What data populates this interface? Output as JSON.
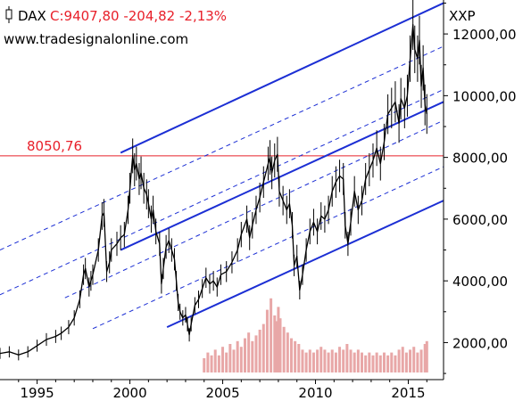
{
  "header": {
    "symbol": "DAX",
    "quote": "C:9407,80 -204,82 -2,13%",
    "website": "www.tradesignalonline.com",
    "axis_unit": "XXP"
  },
  "chart_data": {
    "type": "line",
    "series_name": "DAX",
    "y_ticks": [
      2000,
      4000,
      6000,
      8000,
      10000,
      12000
    ],
    "y_tick_labels": [
      "2000,00",
      "4000,00",
      "6000,00",
      "8000,00",
      "10000,00",
      "12000,00"
    ],
    "x_ticks": [
      1995,
      2000,
      2005,
      2010,
      2015
    ],
    "x_tick_labels": [
      "1995",
      "2000",
      "2005",
      "2010",
      "2015"
    ],
    "x_range": [
      1993.0,
      2016.9
    ],
    "y_range": [
      800,
      13100
    ],
    "horizontal_level": {
      "value": 8050.76,
      "label": "8050,76",
      "color": "#e8202a"
    },
    "channel_lines": [
      {
        "from": [
          1999.5,
          8150
        ],
        "to": [
          2016.9,
          13000
        ],
        "style": "solid"
      },
      {
        "from": [
          1999.5,
          5000
        ],
        "to": [
          2016.9,
          9800
        ],
        "style": "solid"
      },
      {
        "from": [
          2002.0,
          2500
        ],
        "to": [
          2016.9,
          6600
        ],
        "style": "solid"
      },
      {
        "from": [
          1993.0,
          5000
        ],
        "to": [
          2016.9,
          11600
        ],
        "style": "dashed"
      },
      {
        "from": [
          1993.0,
          3550
        ],
        "to": [
          2016.9,
          10200
        ],
        "style": "dashed"
      },
      {
        "from": [
          1996.5,
          3450
        ],
        "to": [
          2016.9,
          9200
        ],
        "style": "dashed"
      },
      {
        "from": [
          1998.0,
          2450
        ],
        "to": [
          2016.9,
          7700
        ],
        "style": "dashed"
      }
    ],
    "price": [
      [
        1993.0,
        1650
      ],
      [
        1993.5,
        1700
      ],
      [
        1994.0,
        1600
      ],
      [
        1994.5,
        1700
      ],
      [
        1995.0,
        1900
      ],
      [
        1995.5,
        2100
      ],
      [
        1996.0,
        2200
      ],
      [
        1996.3,
        2300
      ],
      [
        1996.7,
        2500
      ],
      [
        1997.0,
        2800
      ],
      [
        1997.3,
        3400
      ],
      [
        1997.5,
        4200
      ],
      [
        1997.6,
        4400
      ],
      [
        1997.8,
        3800
      ],
      [
        1997.9,
        4000
      ],
      [
        1998.0,
        4200
      ],
      [
        1998.3,
        5000
      ],
      [
        1998.5,
        6100
      ],
      [
        1998.6,
        6200
      ],
      [
        1998.75,
        4300
      ],
      [
        1998.9,
        4600
      ],
      [
        1999.0,
        5000
      ],
      [
        1999.3,
        5200
      ],
      [
        1999.5,
        5400
      ],
      [
        1999.7,
        5500
      ],
      [
        1999.9,
        6300
      ],
      [
        2000.0,
        7000
      ],
      [
        2000.15,
        8050
      ],
      [
        2000.25,
        7600
      ],
      [
        2000.35,
        7800
      ],
      [
        2000.5,
        7300
      ],
      [
        2000.6,
        7500
      ],
      [
        2000.75,
        7000
      ],
      [
        2000.9,
        6800
      ],
      [
        2001.0,
        6500
      ],
      [
        2001.15,
        6000
      ],
      [
        2001.25,
        6300
      ],
      [
        2001.4,
        5600
      ],
      [
        2001.6,
        5200
      ],
      [
        2001.7,
        3900
      ],
      [
        2001.8,
        4400
      ],
      [
        2001.95,
        5100
      ],
      [
        2002.1,
        5300
      ],
      [
        2002.25,
        5000
      ],
      [
        2002.4,
        4700
      ],
      [
        2002.5,
        4000
      ],
      [
        2002.6,
        3300
      ],
      [
        2002.7,
        3000
      ],
      [
        2002.85,
        2800
      ],
      [
        2003.0,
        2900
      ],
      [
        2003.1,
        2600
      ],
      [
        2003.2,
        2250
      ],
      [
        2003.3,
        2600
      ],
      [
        2003.5,
        3200
      ],
      [
        2003.7,
        3400
      ],
      [
        2003.9,
        3750
      ],
      [
        2004.1,
        4100
      ],
      [
        2004.3,
        3900
      ],
      [
        2004.5,
        4000
      ],
      [
        2004.7,
        3800
      ],
      [
        2004.9,
        4200
      ],
      [
        2005.2,
        4300
      ],
      [
        2005.5,
        4600
      ],
      [
        2005.8,
        5000
      ],
      [
        2006.0,
        5500
      ],
      [
        2006.3,
        6000
      ],
      [
        2006.45,
        5400
      ],
      [
        2006.6,
        5800
      ],
      [
        2006.8,
        6300
      ],
      [
        2007.0,
        6700
      ],
      [
        2007.2,
        7200
      ],
      [
        2007.45,
        7800
      ],
      [
        2007.55,
        8000
      ],
      [
        2007.65,
        7500
      ],
      [
        2007.8,
        7900
      ],
      [
        2007.95,
        8100
      ],
      [
        2008.05,
        6900
      ],
      [
        2008.25,
        6600
      ],
      [
        2008.45,
        6300
      ],
      [
        2008.6,
        6500
      ],
      [
        2008.75,
        5800
      ],
      [
        2008.85,
        4500
      ],
      [
        2009.0,
        4800
      ],
      [
        2009.15,
        3700
      ],
      [
        2009.3,
        4200
      ],
      [
        2009.5,
        5000
      ],
      [
        2009.7,
        5600
      ],
      [
        2009.9,
        5900
      ],
      [
        2010.1,
        5600
      ],
      [
        2010.3,
        6100
      ],
      [
        2010.5,
        6000
      ],
      [
        2010.7,
        6300
      ],
      [
        2010.9,
        6900
      ],
      [
        2011.1,
        7200
      ],
      [
        2011.3,
        7400
      ],
      [
        2011.5,
        7300
      ],
      [
        2011.6,
        5800
      ],
      [
        2011.75,
        5200
      ],
      [
        2011.9,
        5900
      ],
      [
        2012.1,
        6900
      ],
      [
        2012.3,
        6300
      ],
      [
        2012.5,
        6600
      ],
      [
        2012.7,
        7300
      ],
      [
        2012.9,
        7600
      ],
      [
        2013.1,
        7900
      ],
      [
        2013.3,
        8300
      ],
      [
        2013.5,
        7800
      ],
      [
        2013.7,
        8500
      ],
      [
        2013.9,
        9400
      ],
      [
        2014.1,
        9600
      ],
      [
        2014.3,
        9800
      ],
      [
        2014.5,
        9100
      ],
      [
        2014.6,
        9900
      ],
      [
        2014.8,
        9600
      ],
      [
        2014.95,
        10000
      ],
      [
        2015.1,
        11200
      ],
      [
        2015.25,
        12300
      ],
      [
        2015.35,
        11500
      ],
      [
        2015.5,
        11200
      ],
      [
        2015.6,
        11800
      ],
      [
        2015.7,
        10300
      ],
      [
        2015.8,
        10900
      ],
      [
        2015.9,
        9700
      ],
      [
        2016.0,
        9407.8
      ]
    ],
    "volume": [
      [
        2004.0,
        0.5
      ],
      [
        2004.2,
        0.7
      ],
      [
        2004.4,
        0.6
      ],
      [
        2004.6,
        0.8
      ],
      [
        2004.8,
        0.6
      ],
      [
        2005.0,
        0.9
      ],
      [
        2005.2,
        0.7
      ],
      [
        2005.4,
        1.0
      ],
      [
        2005.6,
        0.8
      ],
      [
        2005.8,
        1.1
      ],
      [
        2006.0,
        0.9
      ],
      [
        2006.2,
        1.2
      ],
      [
        2006.4,
        1.4
      ],
      [
        2006.6,
        1.1
      ],
      [
        2006.8,
        1.3
      ],
      [
        2007.0,
        1.5
      ],
      [
        2007.2,
        1.7
      ],
      [
        2007.4,
        2.2
      ],
      [
        2007.6,
        2.6
      ],
      [
        2007.8,
        2.0
      ],
      [
        2007.9,
        1.8
      ],
      [
        2008.0,
        2.3
      ],
      [
        2008.1,
        1.9
      ],
      [
        2008.3,
        1.6
      ],
      [
        2008.5,
        1.4
      ],
      [
        2008.7,
        1.2
      ],
      [
        2008.9,
        1.1
      ],
      [
        2009.1,
        1.0
      ],
      [
        2009.3,
        0.8
      ],
      [
        2009.5,
        0.7
      ],
      [
        2009.7,
        0.8
      ],
      [
        2009.9,
        0.7
      ],
      [
        2010.1,
        0.8
      ],
      [
        2010.3,
        0.9
      ],
      [
        2010.5,
        0.8
      ],
      [
        2010.7,
        0.7
      ],
      [
        2010.9,
        0.8
      ],
      [
        2011.1,
        0.7
      ],
      [
        2011.3,
        0.9
      ],
      [
        2011.5,
        0.8
      ],
      [
        2011.7,
        1.0
      ],
      [
        2011.9,
        0.8
      ],
      [
        2012.1,
        0.7
      ],
      [
        2012.3,
        0.8
      ],
      [
        2012.5,
        0.7
      ],
      [
        2012.7,
        0.6
      ],
      [
        2012.9,
        0.7
      ],
      [
        2013.1,
        0.6
      ],
      [
        2013.3,
        0.7
      ],
      [
        2013.5,
        0.6
      ],
      [
        2013.7,
        0.7
      ],
      [
        2013.9,
        0.6
      ],
      [
        2014.1,
        0.7
      ],
      [
        2014.3,
        0.6
      ],
      [
        2014.5,
        0.8
      ],
      [
        2014.7,
        0.9
      ],
      [
        2014.9,
        0.7
      ],
      [
        2015.1,
        0.8
      ],
      [
        2015.3,
        0.9
      ],
      [
        2015.5,
        0.7
      ],
      [
        2015.7,
        0.8
      ],
      [
        2015.9,
        1.0
      ],
      [
        2016.0,
        1.1
      ]
    ],
    "grid": false,
    "colors": {
      "price": "#000000",
      "channel": "#1c2fd4",
      "level": "#e8202a",
      "volume": "#e8a7a7",
      "quote": "#e8202a"
    }
  }
}
